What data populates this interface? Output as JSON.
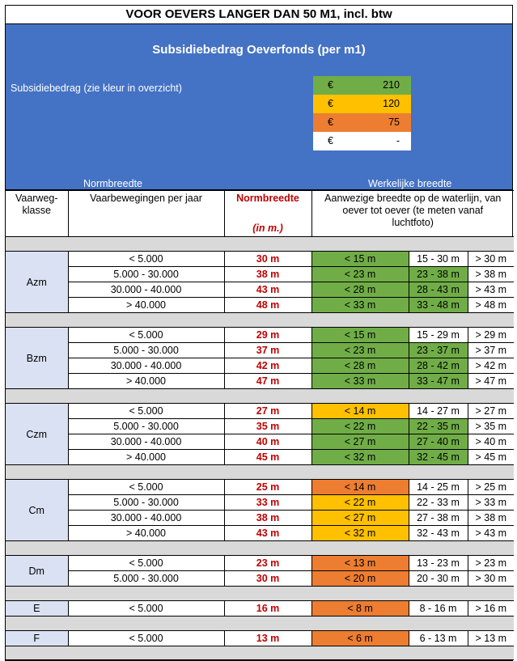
{
  "title": "VOOR OEVERS LANGER DAN 50 M1, incl. btw",
  "subtitle": "Subsidiebedrag Oeverfonds (per m1)",
  "legend_label": "Subsidiebedrag (zie kleur in overzicht)",
  "legend": [
    {
      "currency": "€",
      "amount": "210",
      "color": "#70ad47"
    },
    {
      "currency": "€",
      "amount": "120",
      "color": "#ffc000"
    },
    {
      "currency": "€",
      "amount": "75",
      "color": "#ed7d31"
    },
    {
      "currency": "€",
      "amount": "-",
      "color": "#ffffff"
    }
  ],
  "section_headers": {
    "normbreedte": "Normbreedte",
    "werkelijke": "Werkelijke breedte"
  },
  "columns": {
    "klasse": "Vaarweg-klasse",
    "vaarbewegingen": "Vaarbewegingen per jaar",
    "normbreedte": "Normbreedte",
    "normbreedte_unit": "(in m.)",
    "aanwezig": "Aanwezige breedte op de waterlijn, van oever tot oever (te meten vanaf luchtfoto)"
  },
  "groups": [
    {
      "klasse": "Azm",
      "rows": [
        {
          "vaar": "< 5.000",
          "norm": "30 m",
          "c1": "< 15 m",
          "c1color": "g",
          "c2": "15 - 30 m",
          "c2color": "w",
          "c3": "> 30 m"
        },
        {
          "vaar": "5.000 - 30.000",
          "norm": "38 m",
          "c1": "< 23 m",
          "c1color": "g",
          "c2": "23 - 38 m",
          "c2color": "g",
          "c3": "> 38 m"
        },
        {
          "vaar": "30.000 - 40.000",
          "norm": "43 m",
          "c1": "< 28 m",
          "c1color": "g",
          "c2": "28 - 43 m",
          "c2color": "g",
          "c3": "> 43 m"
        },
        {
          "vaar": "> 40.000",
          "norm": "48 m",
          "c1": "< 33 m",
          "c1color": "g",
          "c2": "33 - 48 m",
          "c2color": "g",
          "c3": "> 48 m"
        }
      ]
    },
    {
      "klasse": "Bzm",
      "rows": [
        {
          "vaar": "< 5.000",
          "norm": "29 m",
          "c1": "< 15 m",
          "c1color": "g",
          "c2": "15 - 29 m",
          "c2color": "w",
          "c3": "> 29 m"
        },
        {
          "vaar": "5.000 - 30.000",
          "norm": "37 m",
          "c1": "< 23 m",
          "c1color": "g",
          "c2": "23 - 37 m",
          "c2color": "g",
          "c3": "> 37 m"
        },
        {
          "vaar": "30.000 - 40.000",
          "norm": "42 m",
          "c1": "< 28 m",
          "c1color": "g",
          "c2": "28 - 42 m",
          "c2color": "g",
          "c3": "> 42 m"
        },
        {
          "vaar": "> 40.000",
          "norm": "47 m",
          "c1": "< 33 m",
          "c1color": "g",
          "c2": "33 - 47 m",
          "c2color": "g",
          "c3": "> 47 m"
        }
      ]
    },
    {
      "klasse": "Czm",
      "rows": [
        {
          "vaar": "< 5.000",
          "norm": "27 m",
          "c1": "< 14 m",
          "c1color": "y",
          "c2": "14 - 27 m",
          "c2color": "w",
          "c3": "> 27 m"
        },
        {
          "vaar": "5.000 - 30.000",
          "norm": "35 m",
          "c1": "< 22 m",
          "c1color": "g",
          "c2": "22 - 35 m",
          "c2color": "g",
          "c3": "> 35 m"
        },
        {
          "vaar": "30.000 - 40.000",
          "norm": "40 m",
          "c1": "< 27 m",
          "c1color": "g",
          "c2": "27 - 40 m",
          "c2color": "g",
          "c3": "> 40 m"
        },
        {
          "vaar": "> 40.000",
          "norm": "45 m",
          "c1": "< 32 m",
          "c1color": "g",
          "c2": "32 - 45 m",
          "c2color": "g",
          "c3": "> 45 m"
        }
      ]
    },
    {
      "klasse": "Cm",
      "rows": [
        {
          "vaar": "< 5.000",
          "norm": "25 m",
          "c1": "< 14 m",
          "c1color": "o",
          "c2": "14 - 25 m",
          "c2color": "w",
          "c3": "> 25 m"
        },
        {
          "vaar": "5.000 - 30.000",
          "norm": "33 m",
          "c1": "< 22 m",
          "c1color": "y",
          "c2": "22 - 33 m",
          "c2color": "w",
          "c3": "> 33 m"
        },
        {
          "vaar": "30.000 - 40.000",
          "norm": "38 m",
          "c1": "< 27 m",
          "c1color": "y",
          "c2": "27 - 38 m",
          "c2color": "w",
          "c3": "> 38 m"
        },
        {
          "vaar": "> 40.000",
          "norm": "43 m",
          "c1": "< 32 m",
          "c1color": "y",
          "c2": "32 - 43 m",
          "c2color": "w",
          "c3": "> 43 m"
        }
      ]
    },
    {
      "klasse": "Dm",
      "rows": [
        {
          "vaar": "< 5.000",
          "norm": "23 m",
          "c1": "< 13 m",
          "c1color": "o",
          "c2": "13 - 23 m",
          "c2color": "w",
          "c3": "> 23 m"
        },
        {
          "vaar": "5.000 - 30.000",
          "norm": "30 m",
          "c1": "< 20 m",
          "c1color": "o",
          "c2": "20 - 30 m",
          "c2color": "w",
          "c3": "> 30 m"
        }
      ]
    },
    {
      "klasse": "E",
      "rows": [
        {
          "vaar": "< 5.000",
          "norm": "16 m",
          "c1": "< 8 m",
          "c1color": "o",
          "c2": "8 - 16 m",
          "c2color": "w",
          "c3": "> 16 m"
        }
      ]
    },
    {
      "klasse": "F",
      "rows": [
        {
          "vaar": "< 5.000",
          "norm": "13 m",
          "c1": "< 6 m",
          "c1color": "o",
          "c2": "6 - 13 m",
          "c2color": "w",
          "c3": "> 13 m"
        }
      ]
    }
  ]
}
